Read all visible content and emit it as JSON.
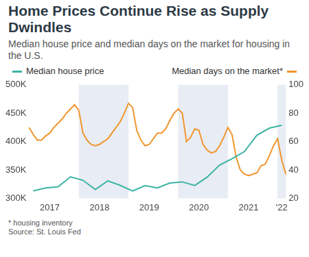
{
  "chart_data": {
    "type": "line",
    "title": "Home Prices Continue Rise as Supply Dwindles",
    "subtitle": "Median house price and median days on the market for housing in the U.S.",
    "annotations": [
      "* housing inventory",
      "Source: St. Louis Fed"
    ],
    "legend": "top",
    "grid": false,
    "categories": [
      null,
      null,
      null,
      null,
      null,
      "2017",
      null,
      null,
      null,
      null,
      null,
      null,
      null,
      null,
      null,
      null,
      null,
      "2018",
      null,
      null,
      null,
      null,
      null,
      null,
      null,
      null,
      null,
      null,
      null,
      "2019",
      null,
      null,
      null,
      null,
      null,
      null,
      null,
      null,
      null,
      null,
      null,
      "2020",
      null,
      null,
      null,
      null,
      null,
      null,
      null,
      null,
      null,
      null,
      null,
      "2021",
      null,
      null,
      null,
      null,
      null,
      null,
      null,
      "'22",
      null
    ],
    "series": [
      {
        "name": "Median house price",
        "color": "#3cb4a5",
        "values": [
          null,
          313100,
          null,
          null,
          318200,
          null,
          null,
          320500,
          null,
          null,
          337900,
          null,
          null,
          331800,
          null,
          null,
          315600,
          null,
          null,
          330900,
          null,
          null,
          322800,
          null,
          null,
          313000,
          null,
          null,
          322500,
          null,
          null,
          318400,
          null,
          null,
          327100,
          null,
          null,
          329000,
          null,
          null,
          322600,
          null,
          null,
          337500,
          null,
          null,
          358700,
          null,
          null,
          369800,
          null,
          null,
          382600,
          null,
          null,
          411200,
          null,
          null,
          423600,
          null,
          null,
          428700,
          null
        ]
      },
      {
        "name": "Median days on the market*",
        "color": "#f0962e",
        "axis": "y2",
        "values": [
          70,
          65,
          61,
          61,
          64,
          66,
          70,
          73,
          76,
          80,
          83,
          86,
          82,
          66,
          61,
          58,
          57,
          58,
          60,
          62,
          66,
          70,
          74,
          80,
          87,
          84,
          68,
          61,
          57,
          58,
          62,
          66,
          66,
          69,
          75,
          80,
          83,
          80,
          60,
          63,
          69,
          68,
          58,
          54,
          52,
          53,
          57,
          63,
          70,
          65,
          49,
          40,
          37,
          36,
          37,
          38,
          43,
          44,
          50,
          57,
          62,
          47,
          37
        ]
      }
    ],
    "ylim": [
      300000,
      500000
    ],
    "yticks": [
      {
        "value": 300000,
        "label": "300K"
      },
      {
        "value": 350000,
        "label": "350K"
      },
      {
        "value": 400000,
        "label": "400K"
      },
      {
        "value": 450000,
        "label": "450K"
      },
      {
        "value": 500000,
        "label": "500K"
      }
    ],
    "y2lim": [
      20,
      100
    ],
    "y2ticks": [
      20,
      40,
      60,
      80,
      100
    ]
  }
}
